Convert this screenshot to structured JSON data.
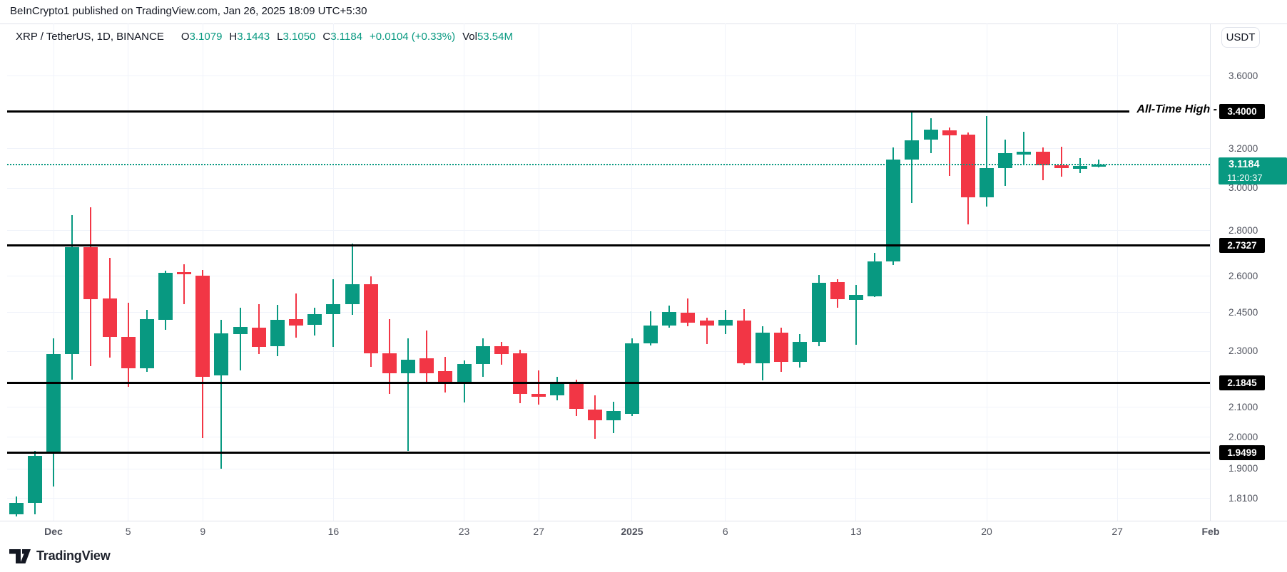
{
  "attribution": {
    "text": "BeInCrypto1 published on TradingView.com, Jan 26, 2025 18:09 UTC+5:30"
  },
  "legend": {
    "symbol": "XRP / TetherUS, 1D, BINANCE",
    "o_label": "O",
    "o": "3.1079",
    "h_label": "H",
    "h": "3.1443",
    "l_label": "L",
    "l": "3.1050",
    "c_label": "C",
    "c": "3.1184",
    "change": "+0.0104 (+0.33%)",
    "vol_label": "Vol",
    "vol": "53.54M"
  },
  "axis": {
    "currency_button": "USDT"
  },
  "footer": {
    "brand": "TradingView"
  },
  "colors": {
    "up": "#089981",
    "down": "#F23645",
    "level_line": "#000000",
    "grid": "#f0f3fa",
    "axis_border": "#e0e3eb",
    "axis_text": "#50535e",
    "badge_bg": "#000000",
    "badge_text": "#ffffff",
    "current_badge_bg": "#089981"
  },
  "chart_data": {
    "type": "candlestick",
    "title": "XRP / TetherUS daily candlestick chart",
    "symbol": "XRP / TetherUS",
    "interval": "1D",
    "exchange": "BINANCE",
    "scale": "log",
    "grid": true,
    "ylim": [
      1.74,
      3.72
    ],
    "price_ticks": [
      {
        "label": "3.6000",
        "price": 3.6
      },
      {
        "label": "3.2000",
        "price": 3.2
      },
      {
        "label": "3.0000",
        "price": 3.0
      },
      {
        "label": "2.8000",
        "price": 2.8
      },
      {
        "label": "2.6000",
        "price": 2.6
      },
      {
        "label": "2.4500",
        "price": 2.45
      },
      {
        "label": "2.3000",
        "price": 2.3
      },
      {
        "label": "2.1000",
        "price": 2.1
      },
      {
        "label": "2.0000",
        "price": 2.0
      },
      {
        "label": "1.9000",
        "price": 1.9
      },
      {
        "label": "1.8100",
        "price": 1.81
      }
    ],
    "levels": [
      {
        "label": "3.4000",
        "price": 3.4,
        "callout": "All-Time High -"
      },
      {
        "label": "2.7327",
        "price": 2.7327
      },
      {
        "label": "2.1845",
        "price": 2.1845
      },
      {
        "label": "1.9499",
        "price": 1.9499
      }
    ],
    "current": {
      "label": "3.1184",
      "price": 3.1184,
      "countdown": "11:20:37"
    },
    "time_ticks": [
      {
        "label": "Dec",
        "i": 2,
        "bold": true
      },
      {
        "label": "5",
        "i": 6,
        "bold": false
      },
      {
        "label": "9",
        "i": 10,
        "bold": false
      },
      {
        "label": "16",
        "i": 17,
        "bold": false
      },
      {
        "label": "23",
        "i": 24,
        "bold": false
      },
      {
        "label": "27",
        "i": 28,
        "bold": false
      },
      {
        "label": "2025",
        "i": 33,
        "bold": true
      },
      {
        "label": "6",
        "i": 38,
        "bold": false
      },
      {
        "label": "13",
        "i": 45,
        "bold": false
      },
      {
        "label": "20",
        "i": 52,
        "bold": false
      },
      {
        "label": "27",
        "i": 59,
        "bold": false
      },
      {
        "label": "Feb",
        "i": 64,
        "bold": true
      }
    ],
    "columns": [
      "date",
      "open",
      "high",
      "low",
      "close"
    ],
    "candles": [
      [
        "Nov 29",
        1.765,
        1.815,
        1.758,
        1.798
      ],
      [
        "Nov 30",
        1.798,
        1.955,
        1.764,
        1.94
      ],
      [
        "Dec 1",
        1.951,
        2.349,
        1.845,
        2.291
      ],
      [
        "Dec 2",
        2.291,
        2.872,
        2.197,
        2.726
      ],
      [
        "Dec 3",
        2.726,
        2.909,
        2.246,
        2.505
      ],
      [
        "Dec 4",
        2.506,
        2.678,
        2.278,
        2.354
      ],
      [
        "Dec 5",
        2.355,
        2.49,
        2.172,
        2.237
      ],
      [
        "Dec 6",
        2.237,
        2.461,
        2.224,
        2.424
      ],
      [
        "Dec 7",
        2.421,
        2.623,
        2.382,
        2.613
      ],
      [
        "Dec 8",
        2.617,
        2.65,
        2.483,
        2.607
      ],
      [
        "Dec 9",
        2.601,
        2.625,
        1.997,
        2.207
      ],
      [
        "Dec 10",
        2.212,
        2.42,
        1.899,
        2.368
      ],
      [
        "Dec 11",
        2.366,
        2.47,
        2.23,
        2.392
      ],
      [
        "Dec 12",
        2.39,
        2.483,
        2.29,
        2.318
      ],
      [
        "Dec 13",
        2.32,
        2.48,
        2.282,
        2.42
      ],
      [
        "Dec 14",
        2.423,
        2.527,
        2.353,
        2.4
      ],
      [
        "Dec 15",
        2.402,
        2.47,
        2.36,
        2.445
      ],
      [
        "Dec 16",
        2.445,
        2.586,
        2.317,
        2.484
      ],
      [
        "Dec 17",
        2.484,
        2.74,
        2.44,
        2.565
      ],
      [
        "Dec 18",
        2.565,
        2.598,
        2.244,
        2.293
      ],
      [
        "Dec 19",
        2.293,
        2.425,
        2.147,
        2.22
      ],
      [
        "Dec 20",
        2.22,
        2.35,
        1.957,
        2.27
      ],
      [
        "Dec 21",
        2.275,
        2.38,
        2.19,
        2.22
      ],
      [
        "Dec 22",
        2.226,
        2.28,
        2.15,
        2.19
      ],
      [
        "Dec 23",
        2.19,
        2.267,
        2.117,
        2.254
      ],
      [
        "Dec 24",
        2.254,
        2.35,
        2.207,
        2.32
      ],
      [
        "Dec 25",
        2.32,
        2.335,
        2.25,
        2.29
      ],
      [
        "Dec 26",
        2.293,
        2.305,
        2.115,
        2.145
      ],
      [
        "Dec 27",
        2.145,
        2.23,
        2.108,
        2.137
      ],
      [
        "Dec 28",
        2.14,
        2.207,
        2.123,
        2.184
      ],
      [
        "Dec 29",
        2.182,
        2.197,
        2.07,
        2.095
      ],
      [
        "Dec 30",
        2.093,
        2.14,
        1.995,
        2.057
      ],
      [
        "Dec 31",
        2.057,
        2.12,
        2.013,
        2.087
      ],
      [
        "Jan 1",
        2.078,
        2.35,
        2.07,
        2.33
      ],
      [
        "Jan 2",
        2.33,
        2.456,
        2.321,
        2.4
      ],
      [
        "Jan 3",
        2.4,
        2.477,
        2.39,
        2.453
      ],
      [
        "Jan 4",
        2.45,
        2.508,
        2.396,
        2.41
      ],
      [
        "Jan 5",
        2.418,
        2.43,
        2.327,
        2.4
      ],
      [
        "Jan 6",
        2.4,
        2.46,
        2.366,
        2.42
      ],
      [
        "Jan 7",
        2.418,
        2.463,
        2.25,
        2.257
      ],
      [
        "Jan 8",
        2.257,
        2.395,
        2.195,
        2.37
      ],
      [
        "Jan 9",
        2.37,
        2.39,
        2.225,
        2.26
      ],
      [
        "Jan 10",
        2.26,
        2.365,
        2.24,
        2.335
      ],
      [
        "Jan 11",
        2.335,
        2.604,
        2.32,
        2.573
      ],
      [
        "Jan 12",
        2.575,
        2.586,
        2.468,
        2.503
      ],
      [
        "Jan 13",
        2.5,
        2.562,
        2.324,
        2.522
      ],
      [
        "Jan 14",
        2.517,
        2.7,
        2.513,
        2.664
      ],
      [
        "Jan 15",
        2.664,
        3.205,
        2.648,
        3.144
      ],
      [
        "Jan 16",
        3.144,
        3.398,
        2.93,
        3.244
      ],
      [
        "Jan 17",
        3.245,
        3.36,
        3.177,
        3.3
      ],
      [
        "Jan 18",
        3.295,
        3.31,
        3.059,
        3.27
      ],
      [
        "Jan 19",
        3.273,
        3.285,
        2.827,
        2.955
      ],
      [
        "Jan 20",
        2.955,
        3.375,
        2.91,
        3.1
      ],
      [
        "Jan 21",
        3.1,
        3.245,
        3.01,
        3.177
      ],
      [
        "Jan 22",
        3.17,
        3.29,
        3.12,
        3.184
      ],
      [
        "Jan 23",
        3.184,
        3.205,
        3.04,
        3.115
      ],
      [
        "Jan 24",
        3.115,
        3.21,
        3.055,
        3.1
      ],
      [
        "Jan 25",
        3.095,
        3.15,
        3.073,
        3.11
      ],
      [
        "Jan 26",
        3.1079,
        3.1443,
        3.105,
        3.1184
      ]
    ]
  }
}
